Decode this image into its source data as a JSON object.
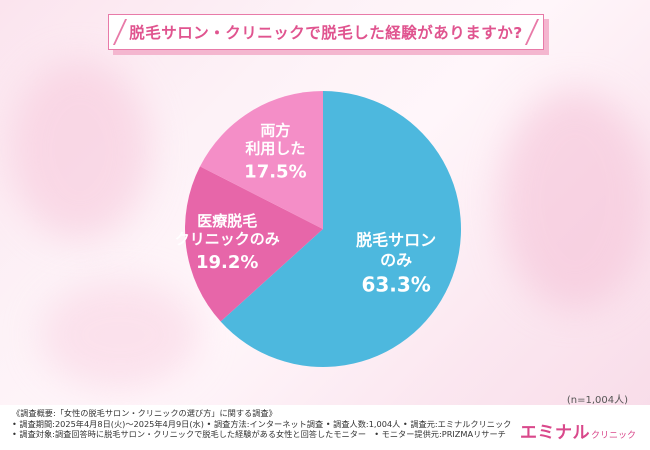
{
  "title": "脱毛サロン・クリニックで脱毛した経験がありますか?",
  "sample_size": "(n=1,004人)",
  "chart_data": {
    "type": "pie",
    "title": "脱毛サロン・クリニックで脱毛した経験がありますか?",
    "slices": [
      {
        "label_lines": [
          "脱毛サロン",
          "のみ"
        ],
        "value": 63.3,
        "value_label": "63.3%",
        "color": "#4db8de"
      },
      {
        "label_lines": [
          "医療脱毛",
          "クリニックのみ"
        ],
        "value": 19.2,
        "value_label": "19.2%",
        "color": "#e766a9"
      },
      {
        "label_lines": [
          "両方",
          "利用した"
        ],
        "value": 17.5,
        "value_label": "17.5%",
        "color": "#f48ec7"
      }
    ]
  },
  "footer": {
    "lines": [
      "《調査概要:「女性の脱毛サロン・クリニックの選び方」に関する調査》",
      "• 調査期間:2025年4月8日(火)〜2025年4月9日(水) • 調査方法:インターネット調査 • 調査人数:1,004人 • 調査元:エミナルクリニック",
      "• 調査対象:調査回答時に脱毛サロン・クリニックで脱毛した経験がある女性と回答したモニター　• モニター提供元:PRIZMAリサーチ"
    ],
    "logo_main": "エミナル",
    "logo_sub": "クリニック"
  }
}
